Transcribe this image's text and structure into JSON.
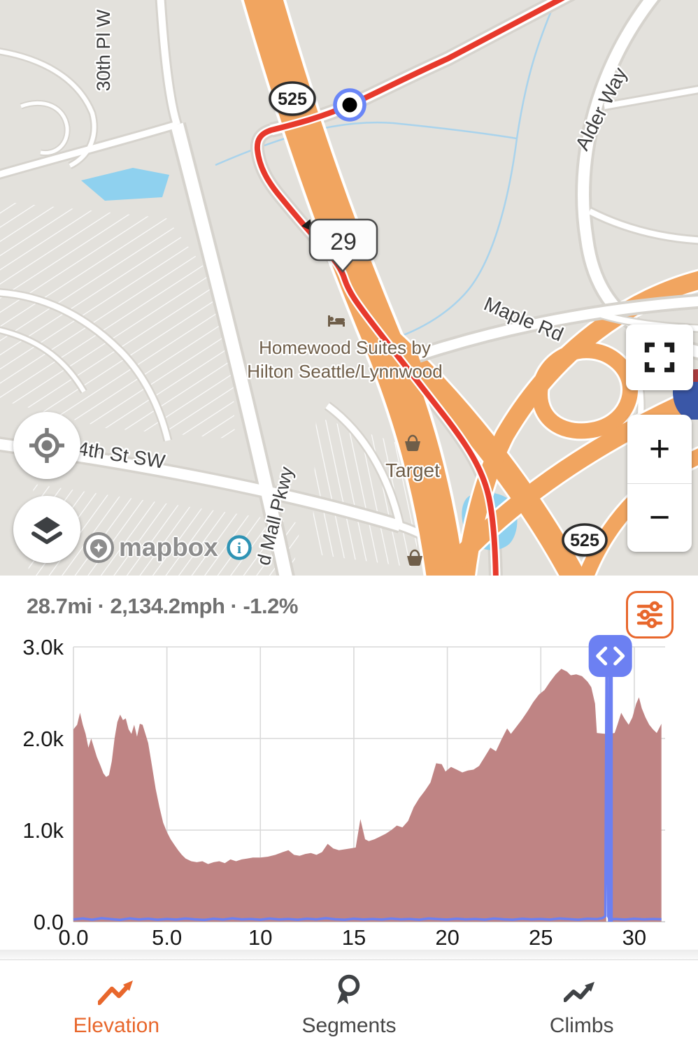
{
  "map": {
    "route_position_label": "29",
    "shields": {
      "hwy_525_top": "525",
      "hwy_525_bottom": "525"
    },
    "streets": {
      "thirtieth": "30th Pl W",
      "alder_way": "Alder Way",
      "maple_rd": "Maple Rd",
      "fourth_st": "4th St SW",
      "mall_pkwy": "d Mall Pkwy"
    },
    "pois": {
      "homewood_line1": "Homewood Suites by",
      "homewood_line2": "Hilton Seattle/Lynnwood",
      "target": "Target"
    },
    "attribution": {
      "brand": "mapbox",
      "info_glyph": "i"
    },
    "controls": {
      "zoom_in": "+",
      "zoom_out": "−"
    },
    "icons": {
      "fullscreen": "fullscreen-icon",
      "locate": "crosshair-icon",
      "layers": "layers-icon",
      "logo": "mapbox-pin-icon",
      "info": "info-icon"
    }
  },
  "chart_panel": {
    "stats_line": "28.7mi · 2,134.2mph · -1.2%",
    "icons": {
      "settings": "sliders-icon",
      "cursor_handle": "code-chevrons-icon"
    }
  },
  "chart_data": {
    "type": "area",
    "title": "",
    "xlabel": "",
    "ylabel": "",
    "grid": true,
    "legend": false,
    "xlim": [
      0,
      31.65
    ],
    "ylim": [
      0,
      3000
    ],
    "x_ticks": [
      {
        "v": 0,
        "label": "0.0"
      },
      {
        "v": 5,
        "label": "5.0"
      },
      {
        "v": 10,
        "label": "10"
      },
      {
        "v": 15,
        "label": "15"
      },
      {
        "v": 20,
        "label": "20"
      },
      {
        "v": 25,
        "label": "25"
      },
      {
        "v": 30,
        "label": "30"
      }
    ],
    "y_ticks": [
      {
        "v": 0,
        "label": "0.0"
      },
      {
        "v": 1000,
        "label": "1.0k"
      },
      {
        "v": 2000,
        "label": "2.0k"
      },
      {
        "v": 3000,
        "label": "3.0k"
      }
    ],
    "cursor_mi": 28.72,
    "series": [
      {
        "name": "elevation_ft",
        "type": "area",
        "color": "#bf8484",
        "points": [
          [
            0,
            2100
          ],
          [
            0.2,
            2150
          ],
          [
            0.35,
            2280
          ],
          [
            0.5,
            2150
          ],
          [
            0.65,
            2050
          ],
          [
            0.8,
            1900
          ],
          [
            0.95,
            2000
          ],
          [
            1.1,
            1900
          ],
          [
            1.25,
            1800
          ],
          [
            1.45,
            1700
          ],
          [
            1.6,
            1620
          ],
          [
            1.75,
            1580
          ],
          [
            1.9,
            1600
          ],
          [
            2.05,
            1750
          ],
          [
            2.2,
            2000
          ],
          [
            2.35,
            2180
          ],
          [
            2.5,
            2260
          ],
          [
            2.65,
            2200
          ],
          [
            2.8,
            2220
          ],
          [
            2.95,
            2100
          ],
          [
            3.1,
            2050
          ],
          [
            3.25,
            2150
          ],
          [
            3.4,
            2020
          ],
          [
            3.55,
            2160
          ],
          [
            3.7,
            2150
          ],
          [
            3.85,
            2050
          ],
          [
            4.0,
            1950
          ],
          [
            4.2,
            1700
          ],
          [
            4.4,
            1450
          ],
          [
            4.6,
            1250
          ],
          [
            4.8,
            1080
          ],
          [
            5.0,
            980
          ],
          [
            5.2,
            900
          ],
          [
            5.4,
            840
          ],
          [
            5.6,
            780
          ],
          [
            5.8,
            730
          ],
          [
            6.0,
            690
          ],
          [
            6.3,
            660
          ],
          [
            6.6,
            650
          ],
          [
            6.9,
            660
          ],
          [
            7.2,
            630
          ],
          [
            7.5,
            650
          ],
          [
            7.8,
            660
          ],
          [
            8.1,
            640
          ],
          [
            8.4,
            680
          ],
          [
            8.7,
            660
          ],
          [
            9.0,
            680
          ],
          [
            9.3,
            690
          ],
          [
            9.6,
            700
          ],
          [
            10.0,
            700
          ],
          [
            10.4,
            710
          ],
          [
            10.8,
            730
          ],
          [
            11.2,
            760
          ],
          [
            11.5,
            780
          ],
          [
            11.8,
            730
          ],
          [
            12.1,
            720
          ],
          [
            12.4,
            740
          ],
          [
            12.7,
            750
          ],
          [
            13.0,
            730
          ],
          [
            13.3,
            760
          ],
          [
            13.6,
            850
          ],
          [
            13.9,
            800
          ],
          [
            14.2,
            780
          ],
          [
            14.5,
            790
          ],
          [
            14.8,
            800
          ],
          [
            15.1,
            810
          ],
          [
            15.35,
            1120
          ],
          [
            15.6,
            900
          ],
          [
            15.8,
            880
          ],
          [
            16.1,
            900
          ],
          [
            16.4,
            930
          ],
          [
            16.7,
            960
          ],
          [
            17.0,
            1000
          ],
          [
            17.3,
            1050
          ],
          [
            17.6,
            1030
          ],
          [
            17.9,
            1100
          ],
          [
            18.2,
            1250
          ],
          [
            18.5,
            1350
          ],
          [
            18.8,
            1430
          ],
          [
            19.1,
            1520
          ],
          [
            19.4,
            1730
          ],
          [
            19.7,
            1720
          ],
          [
            19.9,
            1640
          ],
          [
            20.2,
            1690
          ],
          [
            20.5,
            1660
          ],
          [
            20.8,
            1630
          ],
          [
            21.1,
            1650
          ],
          [
            21.4,
            1660
          ],
          [
            21.7,
            1700
          ],
          [
            22.0,
            1800
          ],
          [
            22.3,
            1900
          ],
          [
            22.6,
            1860
          ],
          [
            22.9,
            1990
          ],
          [
            23.2,
            2110
          ],
          [
            23.4,
            2050
          ],
          [
            23.7,
            2130
          ],
          [
            24.0,
            2210
          ],
          [
            24.3,
            2300
          ],
          [
            24.6,
            2400
          ],
          [
            24.9,
            2480
          ],
          [
            25.2,
            2530
          ],
          [
            25.5,
            2620
          ],
          [
            25.8,
            2700
          ],
          [
            26.1,
            2760
          ],
          [
            26.4,
            2730
          ],
          [
            26.6,
            2690
          ],
          [
            26.9,
            2700
          ],
          [
            27.2,
            2680
          ],
          [
            27.5,
            2620
          ],
          [
            27.7,
            2560
          ],
          [
            27.9,
            2380
          ],
          [
            28.0,
            2060
          ],
          [
            28.45,
            2050
          ],
          [
            28.5,
            0
          ],
          [
            28.62,
            0
          ],
          [
            28.66,
            2050
          ],
          [
            28.95,
            2060
          ],
          [
            29.1,
            2150
          ],
          [
            29.3,
            2280
          ],
          [
            29.5,
            2210
          ],
          [
            29.7,
            2150
          ],
          [
            29.9,
            2230
          ],
          [
            30.1,
            2380
          ],
          [
            30.25,
            2450
          ],
          [
            30.4,
            2330
          ],
          [
            30.6,
            2230
          ],
          [
            30.8,
            2150
          ],
          [
            31.0,
            2100
          ],
          [
            31.2,
            2060
          ],
          [
            31.45,
            2160
          ]
        ]
      },
      {
        "name": "speed",
        "type": "line",
        "color": "#6c80f2",
        "points": [
          [
            0,
            25
          ],
          [
            0.5,
            35
          ],
          [
            1,
            22
          ],
          [
            1.5,
            38
          ],
          [
            2,
            28
          ],
          [
            2.5,
            20
          ],
          [
            3,
            36
          ],
          [
            3.5,
            25
          ],
          [
            4,
            32
          ],
          [
            4.5,
            22
          ],
          [
            5,
            30
          ],
          [
            5.5,
            24
          ],
          [
            6,
            34
          ],
          [
            6.5,
            26
          ],
          [
            7,
            20
          ],
          [
            7.5,
            32
          ],
          [
            8,
            24
          ],
          [
            8.5,
            36
          ],
          [
            9,
            26
          ],
          [
            9.5,
            30
          ],
          [
            10,
            22
          ],
          [
            10.5,
            34
          ],
          [
            11,
            25
          ],
          [
            11.5,
            30
          ],
          [
            12,
            22
          ],
          [
            12.5,
            33
          ],
          [
            13,
            26
          ],
          [
            13.5,
            38
          ],
          [
            14,
            27
          ],
          [
            14.5,
            22
          ],
          [
            15,
            32
          ],
          [
            15.5,
            25
          ],
          [
            16,
            30
          ],
          [
            16.5,
            24
          ],
          [
            17,
            34
          ],
          [
            17.5,
            26
          ],
          [
            18,
            30
          ],
          [
            18.5,
            22
          ],
          [
            19,
            35
          ],
          [
            19.5,
            28
          ],
          [
            20,
            24
          ],
          [
            20.5,
            32
          ],
          [
            21,
            26
          ],
          [
            21.5,
            30
          ],
          [
            22,
            23
          ],
          [
            22.5,
            34
          ],
          [
            23,
            27
          ],
          [
            23.5,
            22
          ],
          [
            24,
            33
          ],
          [
            24.5,
            26
          ],
          [
            25,
            30
          ],
          [
            25.5,
            24
          ],
          [
            26,
            35
          ],
          [
            26.5,
            28
          ],
          [
            27,
            22
          ],
          [
            27.5,
            32
          ],
          [
            28,
            28
          ],
          [
            28.3,
            40
          ],
          [
            28.45,
            60
          ],
          [
            28.52,
            2900
          ],
          [
            28.6,
            60
          ],
          [
            28.68,
            25
          ],
          [
            29,
            30
          ],
          [
            29.5,
            24
          ],
          [
            30,
            32
          ],
          [
            30.5,
            26
          ],
          [
            31,
            30
          ],
          [
            31.45,
            27
          ]
        ]
      }
    ]
  },
  "tabbar": {
    "tabs": [
      {
        "label": "Elevation",
        "active": true,
        "icon": "trend-arrow-icon"
      },
      {
        "label": "Segments",
        "active": false,
        "icon": "medal-icon"
      },
      {
        "label": "Climbs",
        "active": false,
        "icon": "zigzag-arrow-icon"
      }
    ]
  },
  "colors": {
    "accent_orange": "#e8672c",
    "chart_area": "#bf8484",
    "chart_line": "#6c80f2",
    "route_red": "#e7392c",
    "motorway_orange": "#f1a560"
  }
}
